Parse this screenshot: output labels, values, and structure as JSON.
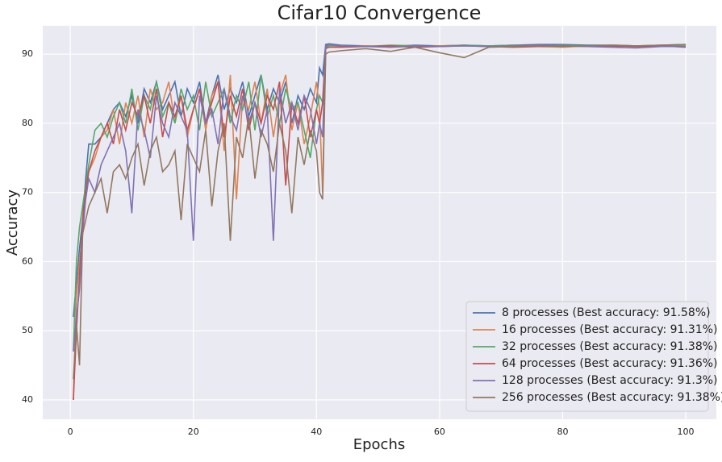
{
  "chart_data": {
    "type": "line",
    "title": "Cifar10 Convergence",
    "xlabel": "Epochs",
    "ylabel": "Accuracy",
    "x": [
      0.5,
      1,
      1.5,
      2,
      2.5,
      3,
      4,
      5,
      6,
      7,
      8,
      9,
      10,
      11,
      12,
      13,
      14,
      15,
      16,
      17,
      18,
      19,
      20,
      21,
      22,
      23,
      24,
      25,
      26,
      27,
      28,
      29,
      30,
      31,
      32,
      33,
      34,
      35,
      36,
      37,
      38,
      39,
      40,
      40.5,
      41,
      41.5,
      42,
      44,
      48,
      52,
      56,
      60,
      64,
      68,
      72,
      76,
      80,
      84,
      88,
      92,
      96,
      100
    ],
    "series": [
      {
        "name": "8 processes (Best accuracy: 91.58%)",
        "color": "#4c72b0",
        "values": [
          52,
          57,
          62,
          66,
          72,
          77,
          77,
          78,
          80,
          82,
          83,
          81,
          84,
          80,
          85,
          83,
          86,
          82,
          84,
          86,
          81,
          85,
          83,
          86,
          80,
          84,
          87,
          82,
          85,
          83,
          86,
          81,
          84,
          87,
          82,
          85,
          83,
          86,
          80,
          84,
          82,
          85,
          83,
          88,
          87,
          91.4,
          91.5,
          91.3,
          91.2,
          91.1,
          91.3,
          91.2,
          91.3,
          91.2,
          91.3,
          91.4,
          91.4,
          91.3,
          91.3,
          91.2,
          91.3,
          91.4
        ]
      },
      {
        "name": "16 processes (Best accuracy: 91.31%)",
        "color": "#dd8452",
        "values": [
          40,
          55,
          60,
          64,
          70,
          73,
          75,
          78,
          79,
          82,
          77,
          83,
          80,
          84,
          78,
          85,
          82,
          83,
          86,
          80,
          84,
          78,
          82,
          85,
          79,
          84,
          86,
          76,
          87,
          69,
          84,
          82,
          86,
          80,
          85,
          78,
          84,
          87,
          79,
          83,
          77,
          81,
          86,
          82,
          70,
          91.2,
          91.3,
          91.1,
          91.2,
          91,
          91.1,
          91.2,
          91.3,
          91.1,
          91.2,
          91.1,
          91,
          91.2,
          91.1,
          91.2,
          91.1,
          91.1
        ]
      },
      {
        "name": "32 processes (Best accuracy: 91.38%)",
        "color": "#55a868",
        "values": [
          47,
          60,
          65,
          68,
          71,
          74,
          79,
          80,
          78,
          81,
          83,
          80,
          85,
          79,
          84,
          82,
          86,
          81,
          83,
          80,
          85,
          82,
          84,
          79,
          86,
          81,
          83,
          85,
          80,
          84,
          82,
          86,
          79,
          87,
          81,
          84,
          80,
          85,
          82,
          83,
          79,
          75,
          82,
          84,
          83,
          91,
          91.2,
          91.2,
          91.1,
          91.3,
          91.2,
          91.1,
          91.3,
          91.2,
          91.3,
          91.2,
          91.3,
          91.2,
          91.1,
          91.2,
          91.2,
          91.2
        ]
      },
      {
        "name": "64 processes (Best accuracy: 91.36%)",
        "color": "#c44e52",
        "values": [
          40,
          50,
          58,
          66,
          70,
          73,
          76,
          78,
          80,
          77,
          82,
          79,
          83,
          81,
          84,
          80,
          85,
          78,
          83,
          81,
          84,
          79,
          82,
          85,
          80,
          83,
          86,
          78,
          84,
          81,
          85,
          79,
          83,
          80,
          84,
          82,
          86,
          71,
          83,
          80,
          84,
          78,
          82,
          80,
          83,
          90.8,
          91,
          91,
          91.1,
          91.2,
          91,
          91.1,
          91.2,
          91.1,
          91,
          91.1,
          91.2,
          91.1,
          91.2,
          91.1,
          91.2,
          91
        ]
      },
      {
        "name": "128 processes (Best accuracy: 91.3%)",
        "color": "#8172b3",
        "values": [
          47,
          52,
          56,
          64,
          69,
          72,
          70,
          74,
          76,
          78,
          80,
          76,
          67,
          82,
          79,
          75,
          84,
          80,
          78,
          83,
          81,
          79,
          63,
          84,
          80,
          82,
          77,
          85,
          81,
          79,
          84,
          80,
          83,
          78,
          82,
          63,
          85,
          80,
          83,
          79,
          84,
          82,
          77,
          80,
          78,
          91.2,
          91.4,
          91.2,
          91.1,
          91,
          91.2,
          91.1,
          91.2,
          91.1,
          91.2,
          91.3,
          91.2,
          91.1,
          91,
          90.9,
          91.1,
          91.1
        ]
      },
      {
        "name": "256 processes (Best accuracy: 91.38%)",
        "color": "#937860",
        "values": [
          43,
          51,
          45,
          64,
          66,
          68,
          70,
          72,
          67,
          73,
          74,
          72,
          75,
          77,
          71,
          76,
          78,
          73,
          74,
          76,
          66,
          77,
          75,
          73,
          79,
          68,
          76,
          80,
          63,
          78,
          75,
          81,
          72,
          79,
          77,
          73,
          80,
          76,
          67,
          78,
          74,
          79,
          76,
          70,
          69,
          90,
          90.3,
          90.5,
          90.8,
          90.4,
          91,
          90.2,
          89.5,
          91,
          91.1,
          91.2,
          91.1,
          91.2,
          91.3,
          91.2,
          91.3,
          91.4
        ]
      }
    ],
    "xlim": [
      -4.475,
      104.975
    ],
    "ylim": [
      37.2,
      94.1
    ],
    "xticks": [
      0,
      20,
      40,
      60,
      80,
      100
    ],
    "yticks": [
      40,
      50,
      60,
      70,
      80,
      90
    ],
    "grid": true,
    "legend": "lower right"
  }
}
